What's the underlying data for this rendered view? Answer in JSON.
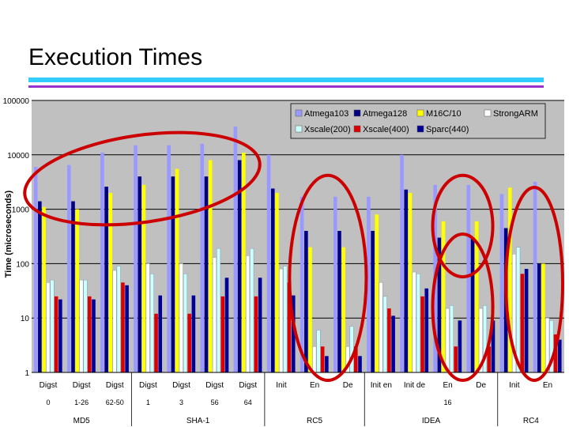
{
  "slide": {
    "title": "Execution Times"
  },
  "colors": {
    "plot_bg": "#c0c0c0",
    "gridline": "#000000",
    "highlight_ellipse": "#cc0000",
    "series": [
      "#9999ff",
      "#000080",
      "#ffff00",
      "#ffffff",
      "#ccffff",
      "#dd0000",
      "#000099"
    ]
  },
  "chart_data": {
    "type": "bar",
    "title": "",
    "xlabel": "",
    "ylabel": "Time (microseconds)",
    "yscale": "log",
    "ylim": [
      1,
      100000
    ],
    "yticks": [
      "1",
      "10",
      "100",
      "1000",
      "10000",
      "100000"
    ],
    "grid": true,
    "legend_position": "top-right",
    "categories": [
      "Digst",
      "Digst",
      "Digst",
      "Digst",
      "Digst",
      "Digst",
      "Digst",
      "Init",
      "En",
      "De",
      "Init en",
      "Init de",
      "En",
      "De",
      "Init",
      "En"
    ],
    "category_level2": [
      "0",
      "1-26",
      "62-50",
      "1",
      "3",
      "56",
      "64",
      "",
      "",
      "",
      "",
      "",
      "16",
      "",
      "",
      ""
    ],
    "groups": [
      {
        "label": "MD5",
        "from": 0,
        "to": 2
      },
      {
        "label": "SHA-1",
        "from": 3,
        "to": 6
      },
      {
        "label": "RC5",
        "from": 7,
        "to": 9
      },
      {
        "label": "IDEA",
        "from": 10,
        "to": 13
      },
      {
        "label": "RC4",
        "from": 14,
        "to": 15
      }
    ],
    "series": [
      {
        "name": "Atmega103",
        "values": [
          6000,
          6500,
          11000,
          15000,
          15000,
          16000,
          33000,
          10000,
          1700,
          1700,
          1700,
          10000,
          2800,
          2800,
          1900,
          3200
        ]
      },
      {
        "name": "Atmega128",
        "values": [
          1400,
          1400,
          2600,
          4000,
          4000,
          4000,
          8000,
          2400,
          400,
          400,
          400,
          2300,
          300,
          300,
          450,
          100
        ]
      },
      {
        "name": "M16C/10",
        "values": [
          1100,
          1000,
          2000,
          2800,
          5500,
          8000,
          11000,
          2000,
          200,
          200,
          800,
          2000,
          600,
          600,
          2500,
          100
        ]
      },
      {
        "name": "StrongARM",
        "values": [
          45,
          50,
          75,
          100,
          100,
          130,
          140,
          80,
          3,
          3,
          45,
          70,
          15,
          15,
          150,
          10
        ]
      },
      {
        "name": "Xscale(200)",
        "values": [
          50,
          50,
          90,
          65,
          65,
          190,
          190,
          90,
          6,
          7,
          25,
          65,
          17,
          17,
          200,
          9
        ]
      },
      {
        "name": "Xscale(400)",
        "values": [
          25,
          25,
          45,
          12,
          12,
          25,
          25,
          45,
          3,
          3,
          15,
          25,
          3,
          3,
          65,
          5
        ]
      },
      {
        "name": "Sparc(440)",
        "values": [
          22,
          22,
          40,
          26,
          26,
          55,
          55,
          26,
          2,
          2,
          11,
          35,
          9,
          9,
          80,
          4
        ]
      }
    ]
  }
}
